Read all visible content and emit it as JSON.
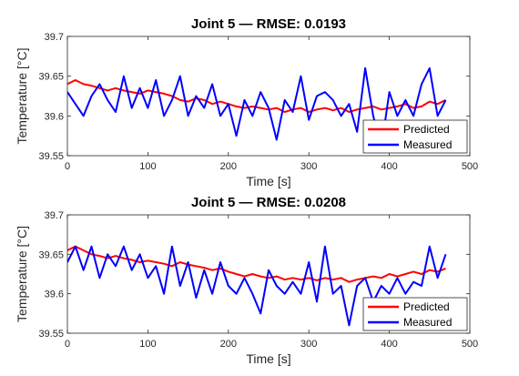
{
  "chart_data": [
    {
      "type": "line",
      "title": "Joint 5 — RMSE: 0.0193",
      "xlabel": "Time [s]",
      "ylabel": "Temperature [°C]",
      "xlim": [
        0,
        500
      ],
      "ylim": [
        39.55,
        39.7
      ],
      "xticks": [
        0,
        100,
        200,
        300,
        400,
        500
      ],
      "yticks": [
        39.55,
        39.6,
        39.65,
        39.7
      ],
      "grid": false,
      "legend_position": "bottom-right",
      "series": [
        {
          "name": "Predicted",
          "color": "#ff0000",
          "x": [
            0,
            10,
            20,
            30,
            40,
            50,
            60,
            70,
            80,
            90,
            100,
            110,
            120,
            130,
            140,
            150,
            160,
            170,
            180,
            190,
            200,
            210,
            220,
            230,
            240,
            250,
            260,
            270,
            280,
            290,
            300,
            310,
            320,
            330,
            340,
            350,
            360,
            370,
            380,
            390,
            400,
            410,
            420,
            430,
            440,
            450,
            460,
            470
          ],
          "y": [
            39.64,
            39.645,
            39.64,
            39.638,
            39.635,
            39.632,
            39.635,
            39.632,
            39.63,
            39.628,
            39.632,
            39.63,
            39.628,
            39.625,
            39.62,
            39.618,
            39.622,
            39.62,
            39.615,
            39.618,
            39.615,
            39.612,
            39.61,
            39.612,
            39.61,
            39.608,
            39.61,
            39.605,
            39.608,
            39.61,
            39.605,
            39.608,
            39.61,
            39.607,
            39.61,
            39.605,
            39.608,
            39.61,
            39.612,
            39.608,
            39.61,
            39.612,
            39.615,
            39.61,
            39.612,
            39.618,
            39.615,
            39.62
          ]
        },
        {
          "name": "Measured",
          "color": "#0000ff",
          "x": [
            0,
            10,
            20,
            30,
            40,
            50,
            60,
            70,
            80,
            90,
            100,
            110,
            120,
            130,
            140,
            150,
            160,
            170,
            180,
            190,
            200,
            210,
            220,
            230,
            240,
            250,
            260,
            270,
            280,
            290,
            300,
            310,
            320,
            330,
            340,
            350,
            360,
            370,
            380,
            390,
            400,
            410,
            420,
            430,
            440,
            450,
            460,
            470
          ],
          "y": [
            39.63,
            39.615,
            39.6,
            39.625,
            39.64,
            39.62,
            39.605,
            39.65,
            39.61,
            39.635,
            39.61,
            39.645,
            39.6,
            39.62,
            39.65,
            39.6,
            39.625,
            39.61,
            39.64,
            39.6,
            39.615,
            39.575,
            39.62,
            39.6,
            39.63,
            39.61,
            39.57,
            39.62,
            39.605,
            39.65,
            39.595,
            39.625,
            39.63,
            39.62,
            39.6,
            39.615,
            39.58,
            39.66,
            39.6,
            39.56,
            39.63,
            39.6,
            39.62,
            39.6,
            39.64,
            39.66,
            39.6,
            39.62
          ]
        }
      ]
    },
    {
      "type": "line",
      "title": "Joint 5 — RMSE: 0.0208",
      "xlabel": "Time [s]",
      "ylabel": "Temperature [°C]",
      "xlim": [
        0,
        500
      ],
      "ylim": [
        39.55,
        39.7
      ],
      "xticks": [
        0,
        100,
        200,
        300,
        400,
        500
      ],
      "yticks": [
        39.55,
        39.6,
        39.65,
        39.7
      ],
      "grid": false,
      "legend_position": "bottom-right",
      "series": [
        {
          "name": "Predicted",
          "color": "#ff0000",
          "x": [
            0,
            10,
            20,
            30,
            40,
            50,
            60,
            70,
            80,
            90,
            100,
            110,
            120,
            130,
            140,
            150,
            160,
            170,
            180,
            190,
            200,
            210,
            220,
            230,
            240,
            250,
            260,
            270,
            280,
            290,
            300,
            310,
            320,
            330,
            340,
            350,
            360,
            370,
            380,
            390,
            400,
            410,
            420,
            430,
            440,
            450,
            460,
            470
          ],
          "y": [
            39.655,
            39.66,
            39.655,
            39.65,
            39.648,
            39.645,
            39.648,
            39.645,
            39.643,
            39.64,
            39.642,
            39.64,
            39.638,
            39.635,
            39.64,
            39.637,
            39.635,
            39.633,
            39.63,
            39.632,
            39.628,
            39.625,
            39.622,
            39.625,
            39.622,
            39.62,
            39.622,
            39.618,
            39.62,
            39.618,
            39.62,
            39.617,
            39.62,
            39.618,
            39.62,
            39.615,
            39.618,
            39.62,
            39.622,
            39.62,
            39.625,
            39.622,
            39.625,
            39.628,
            39.625,
            39.63,
            39.628,
            39.632
          ]
        },
        {
          "name": "Measured",
          "color": "#0000ff",
          "x": [
            0,
            10,
            20,
            30,
            40,
            50,
            60,
            70,
            80,
            90,
            100,
            110,
            120,
            130,
            140,
            150,
            160,
            170,
            180,
            190,
            200,
            210,
            220,
            230,
            240,
            250,
            260,
            270,
            280,
            290,
            300,
            310,
            320,
            330,
            340,
            350,
            360,
            370,
            380,
            390,
            400,
            410,
            420,
            430,
            440,
            450,
            460,
            470
          ],
          "y": [
            39.64,
            39.66,
            39.63,
            39.66,
            39.62,
            39.65,
            39.635,
            39.66,
            39.63,
            39.65,
            39.62,
            39.635,
            39.6,
            39.66,
            39.61,
            39.64,
            39.595,
            39.63,
            39.6,
            39.64,
            39.61,
            39.6,
            39.62,
            39.6,
            39.575,
            39.63,
            39.61,
            39.6,
            39.615,
            39.6,
            39.64,
            39.59,
            39.66,
            39.6,
            39.61,
            39.56,
            39.61,
            39.62,
            39.59,
            39.61,
            39.6,
            39.62,
            39.6,
            39.615,
            39.61,
            39.66,
            39.62,
            39.65
          ]
        }
      ]
    }
  ]
}
